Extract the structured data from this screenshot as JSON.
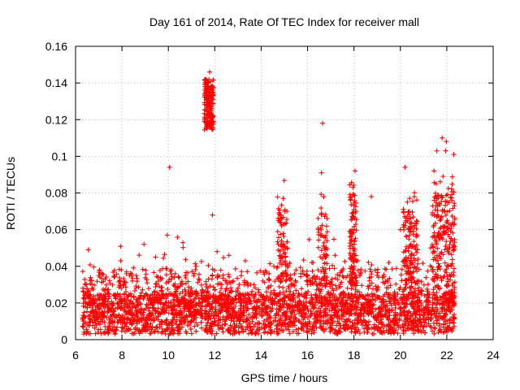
{
  "chart_data": {
    "type": "scatter",
    "title": "Day 161 of 2014, Rate Of TEC Index for receiver mall",
    "xlabel": "GPS time / hours",
    "ylabel": "ROTI / TECUs",
    "xlim": [
      6,
      24
    ],
    "ylim": [
      0,
      0.16
    ],
    "xticks": [
      6,
      8,
      10,
      12,
      14,
      16,
      18,
      20,
      22,
      24
    ],
    "yticks": [
      0,
      0.02,
      0.04,
      0.06,
      0.08,
      0.1,
      0.12,
      0.14,
      0.16
    ],
    "xtick_labels": [
      "6",
      "8",
      "10",
      "12",
      "14",
      "16",
      "18",
      "20",
      "22",
      "24"
    ],
    "ytick_labels": [
      "0",
      "0.02",
      "0.04",
      "0.06",
      "0.08",
      "0.1",
      "0.12",
      "0.14",
      "0.16"
    ],
    "grid": true,
    "marker": "+",
    "color": "#ff0000",
    "series": [
      {
        "name": "ROTI",
        "x": [
          6.35,
          6.45,
          6.55,
          6.7,
          6.85,
          7.0,
          7.2,
          7.45,
          7.7,
          7.95,
          8.2,
          8.45,
          8.7,
          8.95,
          9.2,
          9.45,
          9.7,
          9.95,
          10.05,
          10.25,
          10.5,
          10.75,
          11.0,
          11.2,
          11.45,
          11.65,
          11.72,
          11.78,
          11.84,
          11.9,
          12.1,
          12.3,
          12.55,
          12.8,
          13.05,
          13.3,
          13.55,
          13.8,
          14.05,
          14.3,
          14.55,
          14.75,
          14.85,
          14.95,
          15.05,
          15.2,
          15.45,
          15.7,
          15.95,
          16.2,
          16.45,
          16.6,
          16.65,
          16.8,
          17.05,
          17.3,
          17.55,
          17.85,
          17.95,
          18.05,
          18.25,
          18.5,
          18.75,
          19.0,
          19.25,
          19.5,
          19.75,
          20.0,
          20.2,
          20.3,
          20.45,
          20.6,
          20.8,
          21.05,
          21.3,
          21.45,
          21.55,
          21.7,
          21.8,
          21.95,
          22.1,
          22.2,
          22.3,
          22.3
        ],
        "y": [
          0.012,
          0.03,
          0.049,
          0.02,
          0.015,
          0.035,
          0.018,
          0.025,
          0.012,
          0.043,
          0.02,
          0.032,
          0.015,
          0.052,
          0.022,
          0.045,
          0.01,
          0.057,
          0.094,
          0.034,
          0.018,
          0.026,
          0.013,
          0.04,
          0.022,
          0.118,
          0.138,
          0.146,
          0.127,
          0.068,
          0.048,
          0.03,
          0.02,
          0.032,
          0.012,
          0.024,
          0.03,
          0.018,
          0.022,
          0.028,
          0.04,
          0.065,
          0.052,
          0.077,
          0.045,
          0.028,
          0.018,
          0.036,
          0.025,
          0.02,
          0.038,
          0.091,
          0.118,
          0.045,
          0.03,
          0.018,
          0.034,
          0.058,
          0.083,
          0.092,
          0.035,
          0.022,
          0.078,
          0.028,
          0.019,
          0.042,
          0.026,
          0.06,
          0.094,
          0.075,
          0.052,
          0.078,
          0.032,
          0.024,
          0.05,
          0.092,
          0.085,
          0.065,
          0.11,
          0.103,
          0.05,
          0.062,
          0.101,
          0.02
        ]
      }
    ]
  }
}
